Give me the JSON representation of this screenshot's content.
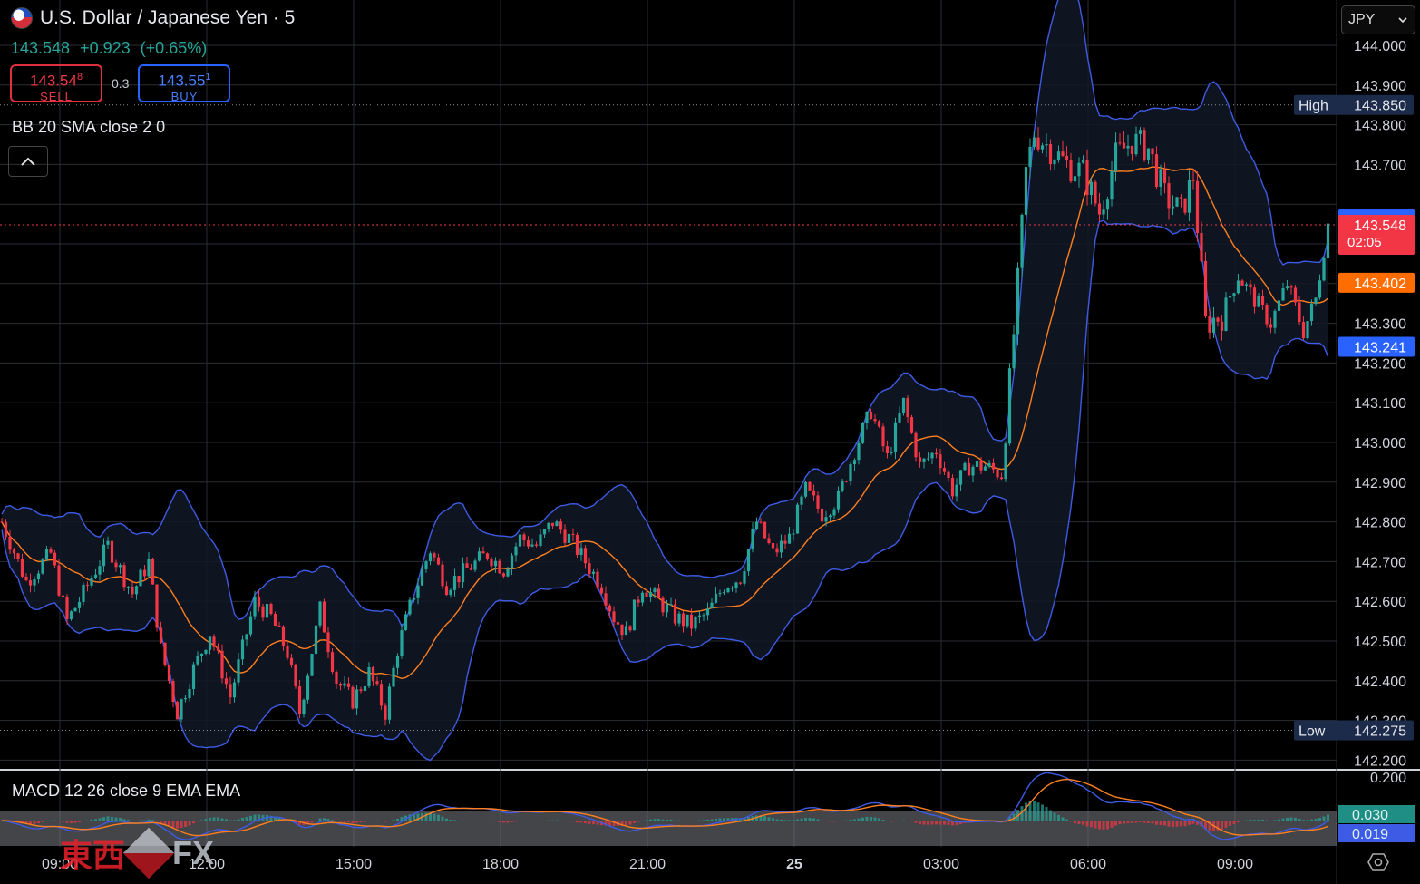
{
  "header": {
    "title": "U.S. Dollar / Japanese Yen · 5",
    "flag_icon": "us-japan-flag-icon",
    "last_price": "143.548",
    "change": "+0.923",
    "change_pct": "(+0.65%)",
    "sell_price": "143.54",
    "sell_price_sup": "8",
    "sell_label": "SELL",
    "spread": "0.3",
    "buy_price": "143.55",
    "buy_price_sup": "1",
    "buy_label": "BUY",
    "bb_label": "BB 20 SMA close 2 0",
    "collapse_icon": "chevron-up-icon",
    "currency_select": "JPY",
    "macd_label": "MACD 12 26 close 9 EMA EMA"
  },
  "watermark": {
    "cn": "東西",
    "fx": "FX"
  },
  "colors": {
    "up": "#26a69a",
    "down": "#f23645",
    "bb_band": "#3e5be6",
    "bb_basis": "#ff7f1f",
    "macd_line": "#3e5be6",
    "signal_line": "#ff7f1f",
    "high_low_badge": "#1c2b4a",
    "current_badge": "#f23645",
    "upper_badge": "#2962ff",
    "basis_badge": "#ff6d00"
  },
  "chart_data": {
    "type": "candlestick",
    "symbol": "USD/JPY",
    "timeframe": "5",
    "y_ticks": [
      "144.000",
      "143.900",
      "143.800",
      "143.700",
      "143.300",
      "143.200",
      "143.100",
      "143.000",
      "142.900",
      "142.800",
      "142.700",
      "142.600",
      "142.500",
      "142.400",
      "142.300",
      "142.200"
    ],
    "ylim": [
      142.18,
      144.04
    ],
    "x_ticks": [
      "09:00",
      "12:00",
      "15:00",
      "18:00",
      "21:00",
      "25",
      "03:00",
      "06:00",
      "09:00"
    ],
    "x_tick_bars": [
      13,
      49,
      85,
      121,
      157,
      193,
      229,
      265,
      301
    ],
    "n_bars": 326,
    "price_path": [
      [
        0,
        142.8
      ],
      [
        6,
        142.65
      ],
      [
        12,
        142.72
      ],
      [
        16,
        142.55
      ],
      [
        20,
        142.62
      ],
      [
        26,
        142.74
      ],
      [
        32,
        142.62
      ],
      [
        36,
        142.7
      ],
      [
        39,
        142.48
      ],
      [
        43,
        142.32
      ],
      [
        47,
        142.43
      ],
      [
        51,
        142.52
      ],
      [
        56,
        142.36
      ],
      [
        62,
        142.6
      ],
      [
        66,
        142.56
      ],
      [
        70,
        142.47
      ],
      [
        73,
        142.32
      ],
      [
        78,
        142.58
      ],
      [
        82,
        142.4
      ],
      [
        86,
        142.35
      ],
      [
        90,
        142.42
      ],
      [
        94,
        142.32
      ],
      [
        97,
        142.48
      ],
      [
        101,
        142.62
      ],
      [
        105,
        142.73
      ],
      [
        109,
        142.64
      ],
      [
        114,
        142.68
      ],
      [
        119,
        142.72
      ],
      [
        123,
        142.68
      ],
      [
        127,
        142.76
      ],
      [
        131,
        142.74
      ],
      [
        135,
        142.8
      ],
      [
        139,
        142.76
      ],
      [
        143,
        142.7
      ],
      [
        147,
        142.64
      ],
      [
        150,
        142.56
      ],
      [
        153,
        142.52
      ],
      [
        157,
        142.64
      ],
      [
        161,
        142.6
      ],
      [
        165,
        142.56
      ],
      [
        169,
        142.54
      ],
      [
        173,
        142.57
      ],
      [
        177,
        142.64
      ],
      [
        181,
        142.66
      ],
      [
        185,
        142.8
      ],
      [
        189,
        142.72
      ],
      [
        193,
        142.76
      ],
      [
        197,
        142.88
      ],
      [
        201,
        142.82
      ],
      [
        205,
        142.86
      ],
      [
        209,
        142.98
      ],
      [
        213,
        143.08
      ],
      [
        217,
        142.96
      ],
      [
        221,
        143.1
      ],
      [
        225,
        142.94
      ],
      [
        229,
        142.98
      ],
      [
        233,
        142.88
      ],
      [
        237,
        142.94
      ],
      [
        241,
        142.94
      ],
      [
        245,
        142.92
      ],
      [
        247,
        143.15
      ],
      [
        249,
        143.4
      ],
      [
        251,
        143.68
      ],
      [
        253,
        143.78
      ],
      [
        257,
        143.74
      ],
      [
        261,
        143.7
      ],
      [
        265,
        143.68
      ],
      [
        269,
        143.58
      ],
      [
        273,
        143.72
      ],
      [
        277,
        143.76
      ],
      [
        281,
        143.74
      ],
      [
        285,
        143.62
      ],
      [
        289,
        143.58
      ],
      [
        292,
        143.67
      ],
      [
        295,
        143.3
      ],
      [
        299,
        143.32
      ],
      [
        303,
        143.42
      ],
      [
        307,
        143.36
      ],
      [
        311,
        143.3
      ],
      [
        315,
        143.4
      ],
      [
        319,
        143.28
      ],
      [
        322,
        143.36
      ],
      [
        325,
        143.55
      ]
    ],
    "high": {
      "label": "High",
      "value": "143.850"
    },
    "low": {
      "label": "Low",
      "value": "142.275"
    },
    "current": {
      "value": "143.548",
      "countdown": "02:05"
    },
    "bb_upper_value": "143.562",
    "bb_basis_value": "143.402",
    "bb_lower_value": "143.241",
    "bollinger": {
      "length": 20,
      "source": "close",
      "mult": 2,
      "offset": 0
    },
    "macd": {
      "fast": 12,
      "slow": 26,
      "signal": 9,
      "y_tick": "0.200",
      "macd_value": "0.030",
      "signal_value": "0.019",
      "ylim": [
        -0.05,
        0.22
      ]
    }
  }
}
